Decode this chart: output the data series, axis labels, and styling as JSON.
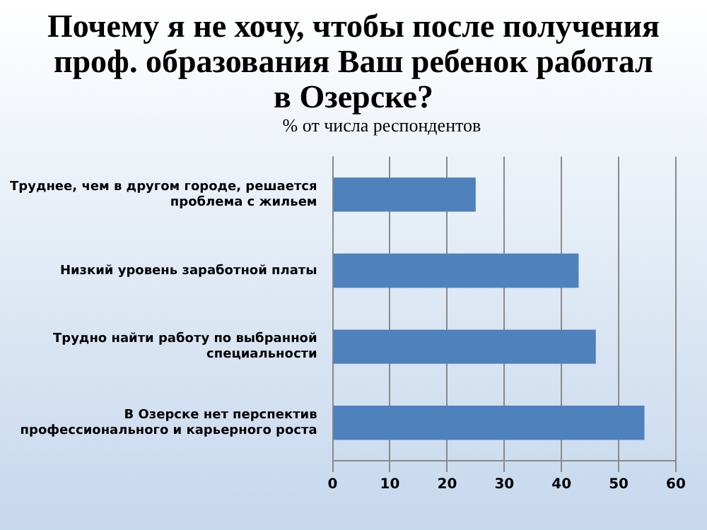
{
  "chart_data": {
    "type": "bar",
    "orientation": "horizontal",
    "title": "Почему я не хочу, чтобы после получения проф. образования Ваш ребенок работал в Озерске?",
    "subtitle": "% от числа респондентов",
    "categories": [
      "Труднее, чем в другом городе, решается проблема с жильем",
      "Низкий уровень заработной платы",
      "Трудно найти работу по выбранной специальности",
      "В Озерске нет перспектив профессионального и карьерного роста"
    ],
    "values": [
      25,
      43,
      46,
      54.5
    ],
    "color": "#4f81bd",
    "xlim": [
      0,
      60
    ],
    "xticks": [
      0,
      10,
      20,
      30,
      40,
      50,
      60
    ],
    "grid": "x",
    "legend": false
  }
}
